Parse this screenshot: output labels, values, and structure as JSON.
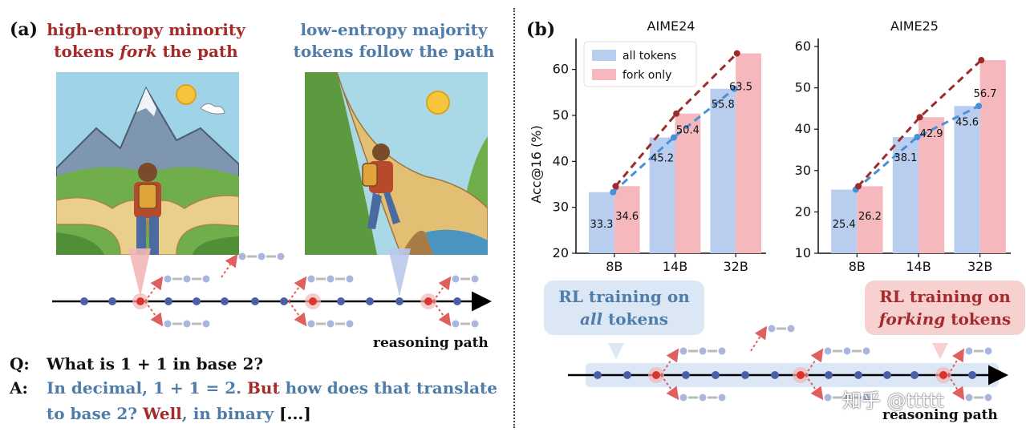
{
  "panel_a": {
    "label": "(a)",
    "caption_left_1": "high-entropy minority",
    "caption_left_2a": "tokens ",
    "caption_left_2b": "fork",
    "caption_left_2c": " the path",
    "caption_right_1": "low-entropy majority",
    "caption_right_2": "tokens follow the path",
    "axis_label": "reasoning path",
    "q_label": "Q:",
    "q_text": "What is 1 + 1 in base 2?",
    "a_label": "A:",
    "a_text_1": "In decimal, 1 + 1 = 2. ",
    "a_but": "But",
    "a_text_2": " how does that translate",
    "a_text_3": "to base 2? ",
    "a_well": "Well",
    "a_text_4": ", in binary ",
    "a_ellipsis": "[...]"
  },
  "panel_b": {
    "label": "(b)",
    "legend": [
      "all tokens",
      "fork only"
    ],
    "ylabel": "Acc@16 (%)",
    "rl_all_1": "RL training on",
    "rl_all_2": "all",
    "rl_all_3": " tokens",
    "rl_fork_1": "RL training on",
    "rl_fork_2": "forking",
    "rl_fork_3": " tokens",
    "axis_label": "reasoning path",
    "watermark": "知乎 @ttttt"
  },
  "colors": {
    "all_tokens_bar": "#b9cdee",
    "fork_only_bar": "#f4b8bd",
    "all_tokens_line": "#4a90d9",
    "fork_only_line": "#9b2c2c",
    "token_blue": "#4a5fa8",
    "token_red": "#d9352b"
  },
  "chart_data": [
    {
      "type": "bar",
      "title": "AIME24",
      "categories": [
        "8B",
        "14B",
        "32B"
      ],
      "ylabel": "Acc@16 (%)",
      "ylim": [
        20,
        65
      ],
      "yticks": [
        20,
        30,
        40,
        50,
        60
      ],
      "legend_position": "top-left",
      "series": [
        {
          "name": "all tokens",
          "values": [
            33.3,
            45.2,
            55.8
          ]
        },
        {
          "name": "fork only",
          "values": [
            34.6,
            50.4,
            63.5
          ]
        }
      ]
    },
    {
      "type": "bar",
      "title": "AIME25",
      "categories": [
        "8B",
        "14B",
        "32B"
      ],
      "ylim": [
        10,
        60
      ],
      "yticks": [
        10,
        20,
        30,
        40,
        50,
        60
      ],
      "series": [
        {
          "name": "all tokens",
          "values": [
            25.4,
            38.1,
            45.6
          ]
        },
        {
          "name": "fork only",
          "values": [
            26.2,
            42.9,
            56.7
          ]
        }
      ]
    }
  ]
}
